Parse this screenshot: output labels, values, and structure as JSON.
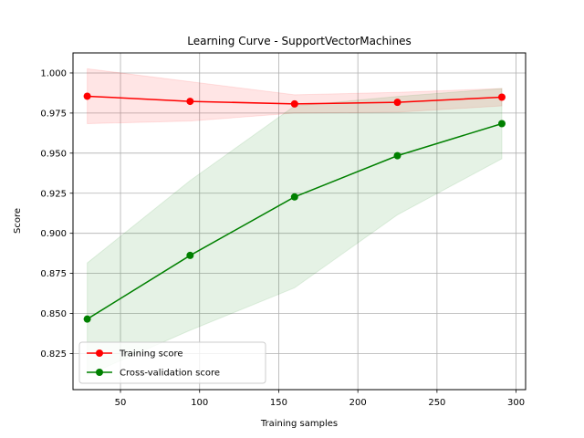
{
  "chart_data": {
    "type": "line",
    "title": "Learning Curve - SupportVectorMachines",
    "xlabel": "Training samples",
    "ylabel": "Score",
    "xlim": [
      20,
      306
    ],
    "ylim": [
      0.8025,
      1.0125
    ],
    "xticks": [
      50,
      100,
      150,
      200,
      250,
      300
    ],
    "yticks": [
      0.825,
      0.85,
      0.875,
      0.9,
      0.925,
      0.95,
      0.975,
      1.0
    ],
    "grid": true,
    "legend_position": "lower-right",
    "x": [
      29,
      94,
      160,
      225,
      291
    ],
    "series": [
      {
        "name": "Training score",
        "color": "#ff0000",
        "band_color": "#ff0000",
        "values": [
          0.9855,
          0.9823,
          0.9807,
          0.9817,
          0.9849
        ],
        "lower": [
          0.9684,
          0.97,
          0.975,
          0.9755,
          0.9795
        ],
        "upper": [
          1.0026,
          0.9946,
          0.9864,
          0.9879,
          0.9903
        ]
      },
      {
        "name": "Cross-validation score",
        "color": "#008000",
        "band_color": "#008000",
        "values": [
          0.8465,
          0.8862,
          0.9227,
          0.9484,
          0.9684
        ],
        "lower": [
          0.8115,
          0.8395,
          0.866,
          0.9115,
          0.9465
        ],
        "upper": [
          0.8815,
          0.9329,
          0.9794,
          0.9853,
          0.9903
        ]
      }
    ]
  }
}
